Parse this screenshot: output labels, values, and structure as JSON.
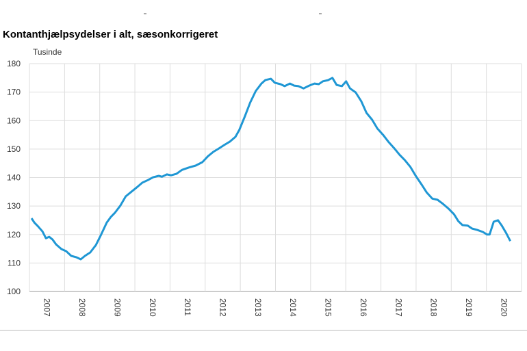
{
  "chart_data": {
    "type": "line",
    "title": "Kontanthjælpsydelser i alt, sæsonkorrigeret",
    "y_axis_label": "Tusinde",
    "categories": [
      "2007",
      "2008",
      "2009",
      "2010",
      "2011",
      "2012",
      "2013",
      "2014",
      "2015",
      "2016",
      "2017",
      "2018",
      "2019",
      "2020"
    ],
    "xlim": [
      2007,
      2021
    ],
    "ylim": [
      100,
      180
    ],
    "yticks": [
      100,
      110,
      120,
      130,
      140,
      150,
      160,
      170,
      180
    ],
    "grid": true,
    "series": [
      {
        "name": "Kontanthjælpsydelser i alt",
        "color": "#1f97d4",
        "x": [
          2007.06,
          2007.14,
          2007.25,
          2007.37,
          2007.47,
          2007.56,
          2007.66,
          2007.76,
          2007.91,
          2008.05,
          2008.19,
          2008.34,
          2008.46,
          2008.58,
          2008.73,
          2008.89,
          2009.04,
          2009.2,
          2009.32,
          2009.43,
          2009.59,
          2009.74,
          2009.9,
          2010.05,
          2010.21,
          2010.37,
          2010.52,
          2010.68,
          2010.77,
          2010.91,
          2011.03,
          2011.18,
          2011.34,
          2011.53,
          2011.73,
          2011.92,
          2012.08,
          2012.23,
          2012.39,
          2012.54,
          2012.7,
          2012.86,
          2012.97,
          2013.13,
          2013.28,
          2013.44,
          2013.6,
          2013.71,
          2013.87,
          2013.98,
          2014.14,
          2014.26,
          2014.41,
          2014.53,
          2014.65,
          2014.8,
          2014.96,
          2015.11,
          2015.23,
          2015.35,
          2015.5,
          2015.62,
          2015.74,
          2015.89,
          2016.01,
          2016.12,
          2016.28,
          2016.44,
          2016.59,
          2016.75,
          2016.9,
          2017.06,
          2017.21,
          2017.37,
          2017.53,
          2017.68,
          2017.84,
          2017.99,
          2018.15,
          2018.3,
          2018.46,
          2018.61,
          2018.77,
          2018.93,
          2019.08,
          2019.2,
          2019.32,
          2019.47,
          2019.59,
          2019.74,
          2019.9,
          2020.02,
          2020.09,
          2020.21,
          2020.33,
          2020.44,
          2020.56,
          2020.68
        ],
        "values": [
          125.7,
          124.2,
          122.8,
          121.1,
          118.7,
          119.2,
          118.2,
          116.5,
          114.9,
          114.1,
          112.5,
          112.0,
          111.3,
          112.5,
          113.7,
          116.3,
          120.0,
          124.2,
          126.2,
          127.6,
          130.2,
          133.4,
          135.0,
          136.5,
          138.2,
          139.1,
          140.1,
          140.6,
          140.3,
          141.1,
          140.8,
          141.3,
          142.7,
          143.5,
          144.2,
          145.4,
          147.5,
          149.0,
          150.2,
          151.4,
          152.6,
          154.3,
          156.7,
          161.5,
          166.3,
          170.4,
          173.0,
          174.2,
          174.7,
          173.3,
          172.8,
          172.1,
          173.0,
          172.3,
          172.1,
          171.3,
          172.3,
          173.0,
          172.8,
          173.8,
          174.2,
          175.0,
          172.5,
          172.1,
          173.8,
          171.3,
          169.9,
          166.8,
          162.7,
          160.3,
          157.2,
          155.0,
          152.6,
          150.4,
          148.0,
          146.1,
          143.7,
          140.6,
          137.7,
          134.8,
          132.6,
          132.2,
          130.7,
          129.0,
          127.1,
          124.7,
          123.3,
          123.1,
          122.1,
          121.6,
          120.9,
          120.0,
          120.0,
          124.5,
          125.0,
          123.1,
          120.6,
          117.7
        ]
      }
    ]
  }
}
